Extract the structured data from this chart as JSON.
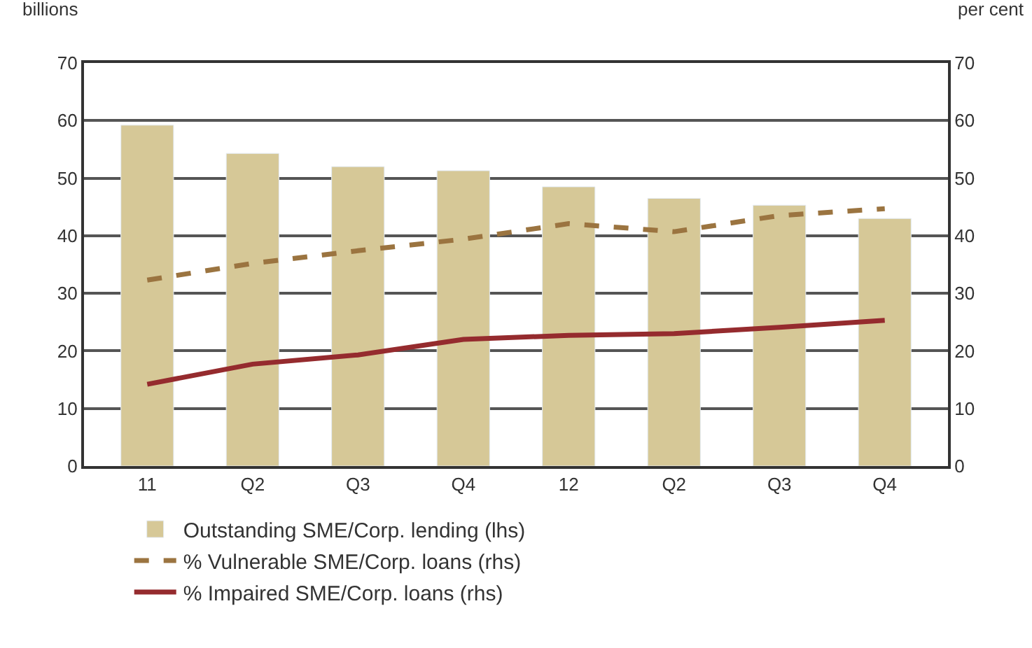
{
  "chart_data": {
    "type": "bar",
    "categories": [
      "11",
      "Q2",
      "Q3",
      "Q4",
      "12",
      "Q2",
      "Q3",
      "Q4"
    ],
    "ylabel": "billions",
    "y2label": "per cent",
    "ylim": [
      0,
      70
    ],
    "yticks": [
      0,
      10,
      20,
      30,
      40,
      50,
      60,
      70
    ],
    "y2lim": [
      0,
      70
    ],
    "y2ticks": [
      0,
      10,
      20,
      30,
      40,
      50,
      60,
      70
    ],
    "grid": "y",
    "legend": "bottom",
    "series": [
      {
        "name": "Outstanding SME/Corp. lending (lhs)",
        "color": "#d6c897",
        "values": [
          59.2,
          54.3,
          52.0,
          51.3,
          48.5,
          46.5,
          45.3,
          43.0
        ]
      },
      {
        "name": "% Vulnerable SME/Corp. loans (rhs)",
        "type": "line",
        "axis": "y2",
        "line_style": "dashed",
        "color": "#9b7440",
        "values": [
          32.3,
          35.2,
          37.4,
          39.4,
          42.1,
          40.7,
          43.5,
          44.7
        ]
      },
      {
        "name": "% Impaired SME/Corp. loans (rhs)",
        "type": "line",
        "axis": "y2",
        "line_style": "solid",
        "color": "#952b2e",
        "values": [
          14.2,
          17.7,
          19.3,
          22.0,
          22.7,
          23.0,
          24.1,
          25.3
        ]
      }
    ]
  }
}
